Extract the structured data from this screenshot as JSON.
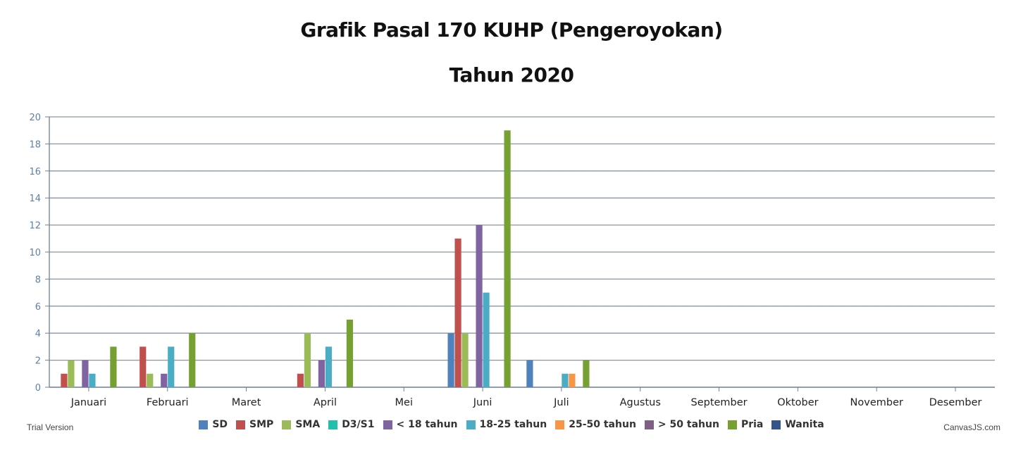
{
  "header": {
    "title_line1": "Grafik Pasal 170 KUHP (Pengeroyokan)",
    "title_line2": "Tahun 2020"
  },
  "footer": {
    "trial": "Trial Version",
    "credit": "CanvasJS.com"
  },
  "chart_data": {
    "type": "bar",
    "title": "Grafik Pasal 170 KUHP (Pengeroyokan)",
    "subtitle": "Tahun 2020",
    "categories": [
      "Januari",
      "Februari",
      "Maret",
      "April",
      "Mei",
      "Juni",
      "Juli",
      "Agustus",
      "September",
      "Oktober",
      "November",
      "Desember"
    ],
    "ylim": [
      0,
      20
    ],
    "yticks": [
      0,
      2,
      4,
      6,
      8,
      10,
      12,
      14,
      16,
      18,
      20
    ],
    "grid": true,
    "legend_position": "bottom",
    "series": [
      {
        "name": "SD",
        "color": "#4f81bc",
        "values": [
          0,
          0,
          0,
          0,
          0,
          4,
          2,
          0,
          0,
          0,
          0,
          0
        ]
      },
      {
        "name": "SMP",
        "color": "#c0504e",
        "values": [
          1,
          3,
          0,
          1,
          0,
          11,
          0,
          0,
          0,
          0,
          0,
          0
        ]
      },
      {
        "name": "SMA",
        "color": "#9bbb58",
        "values": [
          2,
          1,
          0,
          4,
          0,
          4,
          0,
          0,
          0,
          0,
          0,
          0
        ]
      },
      {
        "name": "D3/S1",
        "color": "#23bfaa",
        "values": [
          0,
          0,
          0,
          0,
          0,
          0,
          0,
          0,
          0,
          0,
          0,
          0
        ]
      },
      {
        "name": "< 18 tahun",
        "color": "#8064a1",
        "values": [
          2,
          1,
          0,
          2,
          0,
          12,
          0,
          0,
          0,
          0,
          0,
          0
        ]
      },
      {
        "name": "18-25 tahun",
        "color": "#4aacc5",
        "values": [
          1,
          3,
          0,
          3,
          0,
          7,
          1,
          0,
          0,
          0,
          0,
          0
        ]
      },
      {
        "name": "25-50 tahun",
        "color": "#f79647",
        "values": [
          0,
          0,
          0,
          0,
          0,
          0,
          1,
          0,
          0,
          0,
          0,
          0
        ]
      },
      {
        "name": "> 50 tahun",
        "color": "#7f6084",
        "values": [
          0,
          0,
          0,
          0,
          0,
          0,
          0,
          0,
          0,
          0,
          0,
          0
        ]
      },
      {
        "name": "Pria",
        "color": "#77a033",
        "values": [
          3,
          4,
          0,
          5,
          0,
          19,
          2,
          0,
          0,
          0,
          0,
          0
        ]
      },
      {
        "name": "Wanita",
        "color": "#33558b",
        "values": [
          0,
          0,
          0,
          0,
          0,
          0,
          0,
          0,
          0,
          0,
          0,
          0
        ]
      }
    ]
  }
}
